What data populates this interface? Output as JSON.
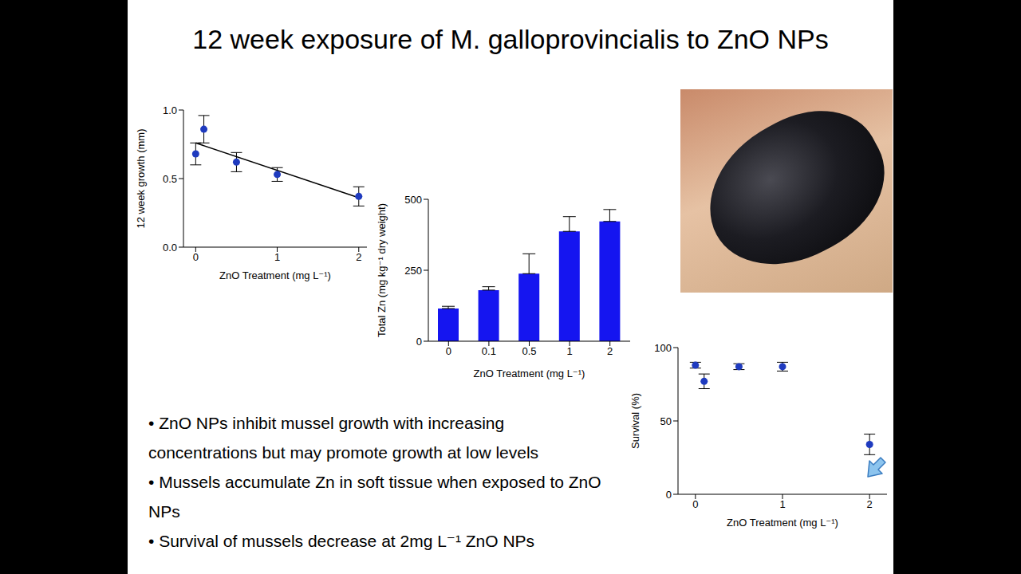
{
  "title": "12 week exposure of M. galloprovincialis to ZnO NPs",
  "bullets": [
    "• ZnO NPs inhibit mussel growth with increasing concentrations but may promote growth at low levels",
    "• Mussels accumulate Zn in soft tissue when exposed to ZnO NPs",
    "• Survival of mussels decrease at 2mg L⁻¹ ZnO NPs"
  ],
  "chart_data": [
    {
      "type": "scatter",
      "x": [
        0,
        0.1,
        0.5,
        1,
        2
      ],
      "values": [
        0.68,
        0.86,
        0.62,
        0.53,
        0.37
      ],
      "errors": [
        0.08,
        0.1,
        0.07,
        0.05,
        0.07
      ],
      "trend_line": {
        "x": [
          0,
          2
        ],
        "values": [
          0.76,
          0.36
        ]
      },
      "color": "#1f3bbf",
      "marker": "circle",
      "xlabel": "ZnO Treatment (mg L⁻¹)",
      "ylabel": "12 week growth (mm)",
      "xlim": [
        -0.15,
        2.1
      ],
      "xticks": [
        0,
        1,
        2
      ],
      "ylim": [
        0,
        1
      ],
      "yticks": [
        {
          "value": 0,
          "label": "0.0"
        },
        {
          "value": 0.5,
          "label": "0.5"
        },
        {
          "value": 1,
          "label": "1.0"
        }
      ]
    },
    {
      "type": "bar",
      "categories": [
        "0",
        "0.1",
        "0.5",
        "1",
        "2"
      ],
      "values": [
        115,
        180,
        238,
        387,
        422
      ],
      "errors": [
        8,
        12,
        70,
        52,
        42
      ],
      "color": "#1515f0",
      "xlabel": "ZnO Treatment (mg L⁻¹)",
      "ylabel": "Total Zn (mg kg⁻¹ dry weight)",
      "ylim": [
        0,
        500
      ],
      "yticks": [
        0,
        250,
        500
      ]
    },
    {
      "type": "scatter",
      "x": [
        0,
        0.1,
        0.5,
        1,
        2
      ],
      "values": [
        88,
        77,
        87,
        87,
        34
      ],
      "errors": [
        2,
        5,
        2,
        3,
        7
      ],
      "color": "#1f3bbf",
      "marker": "circle",
      "xlabel": "ZnO Treatment (mg L⁻¹)",
      "ylabel": "Survival (%)",
      "xlim": [
        -0.2,
        2.2
      ],
      "xticks": [
        0,
        1,
        2
      ],
      "ylim": [
        0,
        100
      ],
      "yticks": [
        0,
        50,
        100
      ]
    }
  ]
}
